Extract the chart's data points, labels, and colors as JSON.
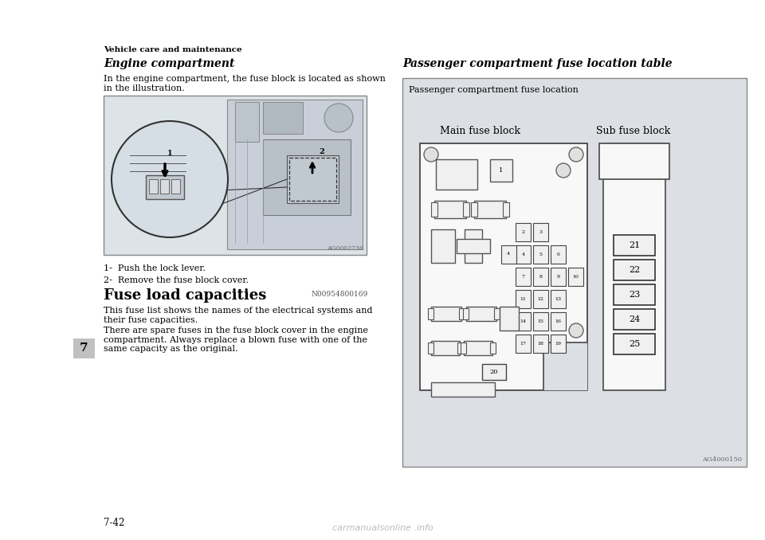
{
  "bg_color": "#ffffff",
  "header_text": "Vehicle care and maintenance",
  "left_heading": "Engine compartment",
  "left_body1": "In the engine compartment, the fuse block is located as shown\nin the illustration.",
  "caption1": "1-  Push the lock lever.",
  "caption2": "2-  Remove the fuse block cover.",
  "fuse_heading": "Fuse load capacities",
  "fuse_ref": "N00954800169",
  "fuse_body1": "This fuse list shows the names of the electrical systems and\ntheir fuse capacities.",
  "fuse_body2": "There are spare fuses in the fuse block cover in the engine\ncompartment. Always replace a blown fuse with one of the\nsame capacity as the original.",
  "right_heading": "Passenger compartment fuse location table",
  "diagram_label": "Passenger compartment fuse location",
  "main_fuse_label": "Main fuse block",
  "sub_fuse_label": "Sub fuse block",
  "ag_left": "AG0002736",
  "ag_right": "AG4000150",
  "page_number": "7-42",
  "chapter_num": "7",
  "sub_fuse_numbers": [
    "21",
    "22",
    "23",
    "24",
    "25"
  ],
  "watermark": "carmanualsonline .info",
  "illus_bg": "#dce4e8",
  "diag_bg": "#dce0e4",
  "mfb_bg": "#f5f5f5",
  "sfb_bg": "#f5f5f5",
  "shape_fc": "#e8e8e8",
  "shape_ec": "#666666",
  "fuse_ec": "#333333"
}
